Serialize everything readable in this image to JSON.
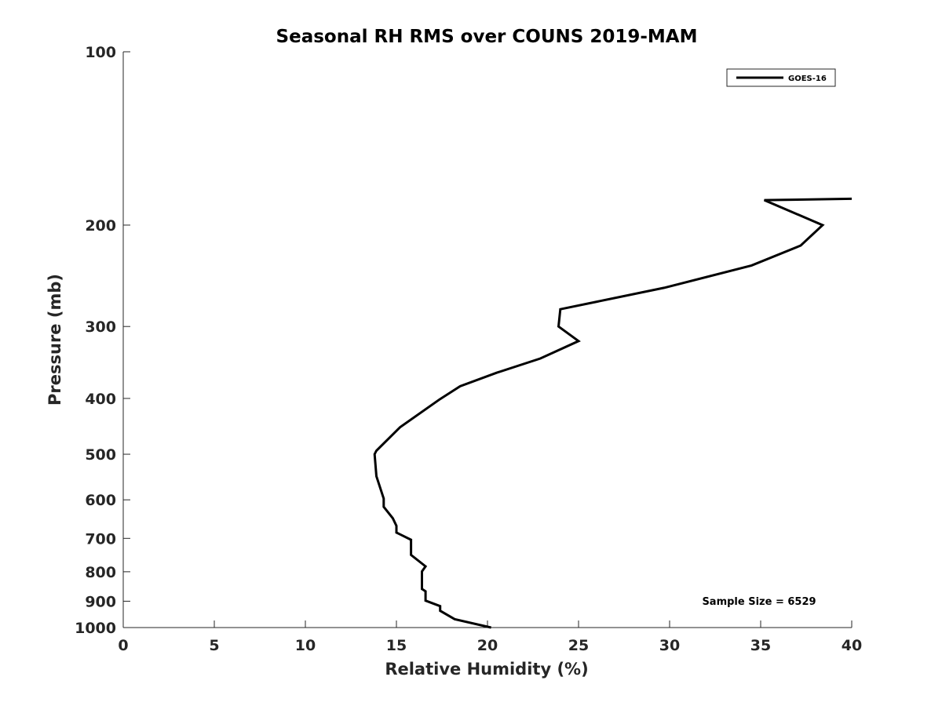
{
  "chart_data": {
    "type": "line",
    "title": "Seasonal RH RMS over COUNS  2019-MAM",
    "xlabel": "Relative Humidity (%)",
    "ylabel": "Pressure (mb)",
    "xlim": [
      0,
      40
    ],
    "ylim": [
      100,
      1000
    ],
    "y_scale": "log",
    "y_reversed": true,
    "x_ticks": [
      0,
      5,
      10,
      15,
      20,
      25,
      30,
      35,
      40
    ],
    "y_ticks": [
      100,
      200,
      300,
      400,
      500,
      600,
      700,
      800,
      900,
      1000
    ],
    "grid": false,
    "legend_position": "top-right",
    "series": [
      {
        "name": "GOES-16",
        "color": "#000000",
        "points": [
          {
            "x": 40.0,
            "y": 180
          },
          {
            "x": 35.2,
            "y": 181
          },
          {
            "x": 38.4,
            "y": 200
          },
          {
            "x": 37.2,
            "y": 217
          },
          {
            "x": 34.5,
            "y": 235
          },
          {
            "x": 29.7,
            "y": 257
          },
          {
            "x": 24.0,
            "y": 280
          },
          {
            "x": 23.9,
            "y": 300
          },
          {
            "x": 25.0,
            "y": 318
          },
          {
            "x": 22.9,
            "y": 341
          },
          {
            "x": 20.5,
            "y": 361
          },
          {
            "x": 18.5,
            "y": 381
          },
          {
            "x": 17.4,
            "y": 401
          },
          {
            "x": 15.2,
            "y": 449
          },
          {
            "x": 13.9,
            "y": 493
          },
          {
            "x": 13.8,
            "y": 500
          },
          {
            "x": 13.9,
            "y": 546
          },
          {
            "x": 14.3,
            "y": 597
          },
          {
            "x": 14.3,
            "y": 617
          },
          {
            "x": 14.8,
            "y": 646
          },
          {
            "x": 15.0,
            "y": 666
          },
          {
            "x": 15.0,
            "y": 684
          },
          {
            "x": 15.8,
            "y": 704
          },
          {
            "x": 15.8,
            "y": 748
          },
          {
            "x": 16.6,
            "y": 783
          },
          {
            "x": 16.4,
            "y": 799
          },
          {
            "x": 16.4,
            "y": 857
          },
          {
            "x": 16.6,
            "y": 865
          },
          {
            "x": 16.6,
            "y": 898
          },
          {
            "x": 17.4,
            "y": 918
          },
          {
            "x": 17.4,
            "y": 935
          },
          {
            "x": 18.2,
            "y": 967
          },
          {
            "x": 20.2,
            "y": 1000
          }
        ]
      }
    ],
    "annotations": [
      {
        "text": "Sample Size = 6529",
        "position": "bottom-right"
      }
    ]
  }
}
